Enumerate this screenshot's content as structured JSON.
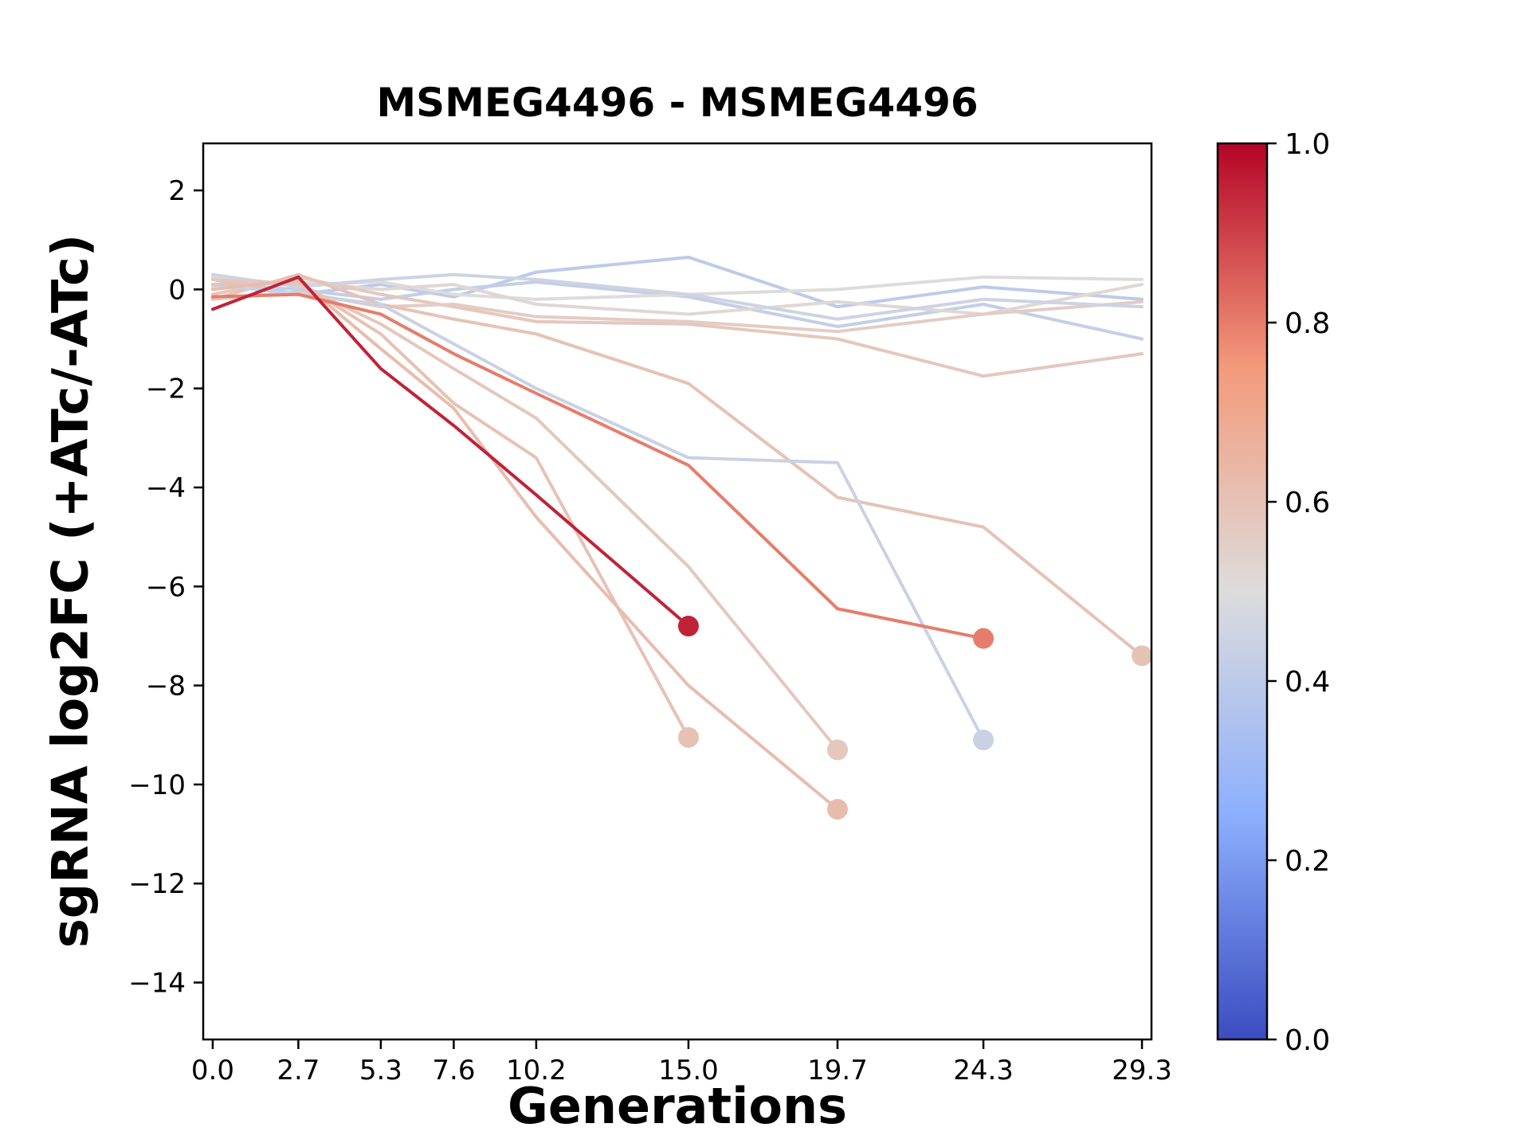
{
  "chart_data": {
    "type": "line",
    "title": "MSMEG4496 - MSMEG4496",
    "xlabel": "Generations",
    "ylabel": "sgRNA log2FC (+ATc/-ATc)",
    "xlim": [
      -0.3,
      29.6
    ],
    "ylim": [
      -15.15,
      2.95
    ],
    "grid": false,
    "legend": null,
    "xticks": [
      {
        "v": 0.0,
        "label": "0.0"
      },
      {
        "v": 2.7,
        "label": "2.7"
      },
      {
        "v": 5.3,
        "label": "5.3"
      },
      {
        "v": 7.6,
        "label": "7.6"
      },
      {
        "v": 10.2,
        "label": "10.2"
      },
      {
        "v": 15.0,
        "label": "15.0"
      },
      {
        "v": 19.7,
        "label": "19.7"
      },
      {
        "v": 24.3,
        "label": "24.3"
      },
      {
        "v": 29.3,
        "label": "29.3"
      }
    ],
    "yticks": [
      {
        "v": 2,
        "label": "2"
      },
      {
        "v": 0,
        "label": "0"
      },
      {
        "v": -2,
        "label": "−2"
      },
      {
        "v": -4,
        "label": "−4"
      },
      {
        "v": -6,
        "label": "−6"
      },
      {
        "v": -8,
        "label": "−8"
      },
      {
        "v": -10,
        "label": "−10"
      },
      {
        "v": -12,
        "label": "−12"
      },
      {
        "v": -14,
        "label": "−14"
      }
    ],
    "colorbar": {
      "colormap": "coolwarm",
      "stops": [
        "#3b4cc0",
        "#8caffe",
        "#dddcdc",
        "#f49a7b",
        "#b40426"
      ],
      "ticks": [
        {
          "v": 0.0,
          "label": "0.0"
        },
        {
          "v": 0.2,
          "label": "0.2"
        },
        {
          "v": 0.4,
          "label": "0.4"
        },
        {
          "v": 0.6,
          "label": "0.6"
        },
        {
          "v": 0.8,
          "label": "0.8"
        },
        {
          "v": 1.0,
          "label": "1.0"
        }
      ]
    },
    "series": [
      {
        "value": 0.4,
        "dot": false,
        "x": [
          0,
          2.7,
          5.3,
          7.6,
          10.2,
          15,
          19.7,
          24.3,
          29.3
        ],
        "y": [
          0.2,
          -0.1,
          0.1,
          -0.15,
          0.35,
          0.65,
          -0.35,
          0.05,
          -0.2
        ]
      },
      {
        "value": 0.42,
        "dot": false,
        "x": [
          0,
          2.7,
          5.3,
          7.6,
          10.2,
          15,
          19.7,
          24.3,
          29.3
        ],
        "y": [
          0.1,
          0.0,
          -0.2,
          0.0,
          0.15,
          -0.15,
          -0.75,
          -0.3,
          -1.0
        ]
      },
      {
        "value": 0.5,
        "dot": false,
        "x": [
          0,
          2.7,
          5.3,
          7.6,
          10.2,
          15,
          19.7,
          24.3,
          29.3
        ],
        "y": [
          0.25,
          0.1,
          0.15,
          -0.1,
          -0.2,
          -0.1,
          0.0,
          0.25,
          0.2
        ]
      },
      {
        "value": 0.52,
        "dot": false,
        "x": [
          0,
          2.7,
          5.3,
          7.6,
          10.2,
          15,
          19.7,
          24.3,
          29.3
        ],
        "y": [
          0.05,
          0.15,
          0.0,
          0.1,
          -0.3,
          -0.5,
          -0.25,
          -0.5,
          0.1
        ]
      },
      {
        "value": 0.58,
        "dot": false,
        "x": [
          0,
          2.7,
          5.3,
          7.6,
          10.2,
          15,
          19.7,
          24.3,
          29.3
        ],
        "y": [
          -0.1,
          0.25,
          -0.1,
          -0.35,
          -0.65,
          -0.7,
          -1.0,
          -1.75,
          -1.3
        ]
      },
      {
        "value": 0.56,
        "dot": false,
        "x": [
          0,
          2.7,
          5.3,
          7.6,
          10.2,
          15,
          19.7,
          24.3,
          29.3
        ],
        "y": [
          -0.2,
          -0.05,
          -0.35,
          -0.3,
          -0.55,
          -0.65,
          -0.85,
          -0.5,
          -0.25
        ]
      },
      {
        "value": 0.45,
        "dot": false,
        "x": [
          0,
          2.7,
          5.3,
          7.6,
          10.2,
          15,
          19.7,
          24.3,
          29.3
        ],
        "y": [
          0.3,
          0.05,
          0.2,
          0.3,
          0.2,
          -0.1,
          -0.6,
          -0.2,
          -0.35
        ]
      },
      {
        "value": 0.6,
        "dot": true,
        "x": [
          0,
          2.7,
          5.3,
          7.6,
          10.2,
          15,
          19.7,
          24.3,
          29.3
        ],
        "y": [
          -0.2,
          0.3,
          -0.3,
          -0.6,
          -0.9,
          -1.9,
          -4.2,
          -4.8,
          -7.4
        ]
      },
      {
        "value": 0.44,
        "dot": true,
        "x": [
          0,
          2.7,
          5.3,
          7.6,
          10.2,
          15,
          19.7,
          24.3
        ],
        "y": [
          0.1,
          -0.1,
          -0.3,
          -1.1,
          -2.0,
          -3.4,
          -3.5,
          -9.1
        ]
      },
      {
        "value": 0.6,
        "dot": true,
        "x": [
          0,
          2.7,
          5.3,
          7.6,
          10.2,
          15
        ],
        "y": [
          0.1,
          0.15,
          -0.9,
          -2.3,
          -3.4,
          -9.05
        ]
      },
      {
        "value": 0.58,
        "dot": true,
        "x": [
          0,
          2.7,
          5.3,
          7.6,
          10.2,
          15,
          19.7
        ],
        "y": [
          0.2,
          0.1,
          -0.7,
          -1.6,
          -2.6,
          -5.6,
          -9.3
        ]
      },
      {
        "value": 0.62,
        "dot": true,
        "x": [
          0,
          2.7,
          5.3,
          7.6,
          10.2,
          15,
          19.7
        ],
        "y": [
          0.0,
          0.2,
          -1.2,
          -2.4,
          -4.6,
          -8.0,
          -10.5
        ]
      },
      {
        "value": 0.8,
        "dot": true,
        "x": [
          0,
          2.7,
          5.3,
          7.6,
          10.2,
          15,
          19.7,
          24.3
        ],
        "y": [
          -0.15,
          -0.1,
          -0.5,
          -1.3,
          -2.1,
          -3.55,
          -6.45,
          -7.05
        ]
      },
      {
        "value": 0.95,
        "dot": true,
        "x": [
          0,
          2.7,
          5.3,
          7.6,
          10.2,
          15
        ],
        "y": [
          -0.4,
          0.25,
          -1.6,
          -2.75,
          -4.15,
          -6.8
        ]
      }
    ]
  }
}
